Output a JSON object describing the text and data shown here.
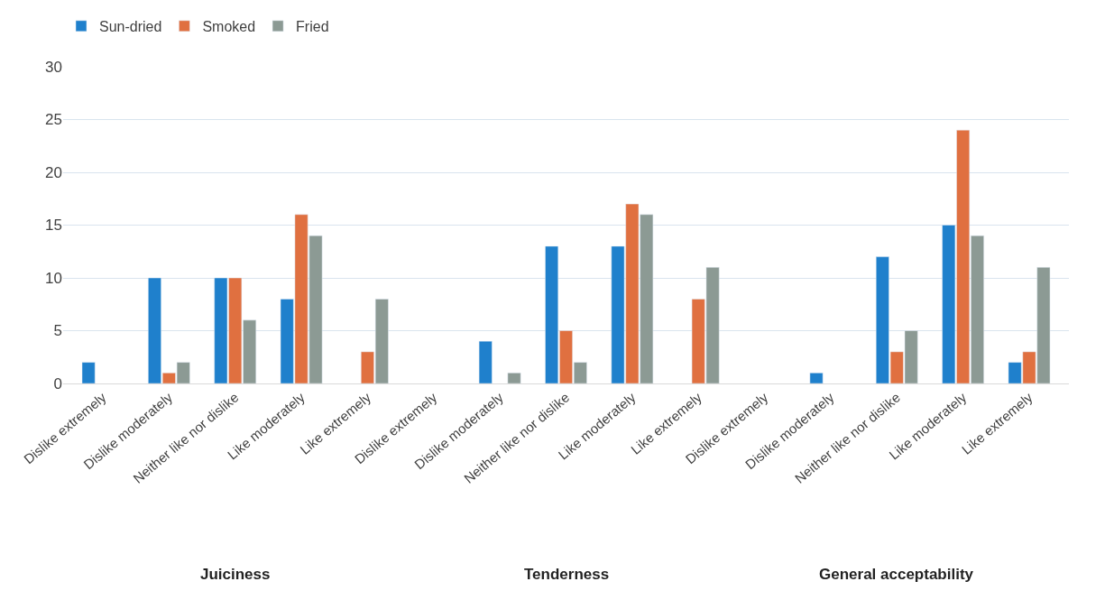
{
  "chart_data": {
    "type": "bar",
    "categories": [
      "Dislike extremely",
      "Dislike moderately",
      "Neither like nor dislike",
      "Like moderately",
      "Like extremely",
      "Dislike extremely",
      "Dislike moderately",
      "Neither like nor dislike",
      "Like moderately",
      "Like extremely",
      "Dislike extremely",
      "Dislike moderately",
      "Neither like nor dislike",
      "Like moderately",
      "Like extremely"
    ],
    "series": [
      {
        "name": "Sun-dried",
        "color": "#1f80cc",
        "values": [
          2,
          10,
          10,
          8,
          null,
          null,
          4,
          13,
          13,
          null,
          null,
          1,
          12,
          15,
          2
        ]
      },
      {
        "name": "Smoked",
        "color": "#e07040",
        "values": [
          null,
          1,
          10,
          16,
          3,
          null,
          null,
          5,
          17,
          8,
          null,
          null,
          3,
          24,
          3
        ]
      },
      {
        "name": "Fried",
        "color": "#8c9a94",
        "values": [
          null,
          2,
          6,
          14,
          8,
          null,
          1,
          2,
          16,
          11,
          null,
          null,
          5,
          14,
          11
        ]
      }
    ],
    "annotations": [
      "Juiciness",
      "Tenderness",
      "General acceptability"
    ],
    "ylim": [
      0,
      30
    ],
    "yticks": [
      0,
      5,
      10,
      15,
      20,
      25,
      30
    ],
    "grid": "y",
    "legend": "top left"
  }
}
